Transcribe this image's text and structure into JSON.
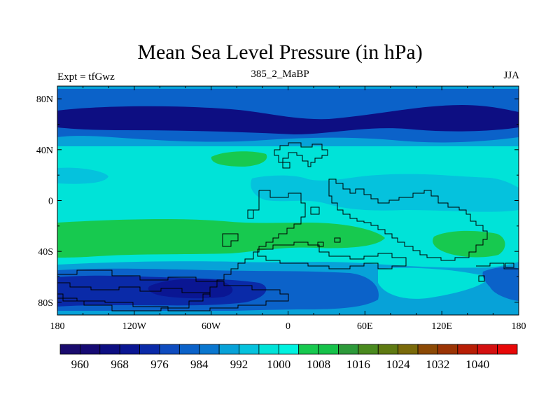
{
  "chart_data": {
    "type": "heatmap",
    "title": "Mean Sea Level Pressure (in hPa)",
    "subtitle": "385_2_MaBP",
    "left_label": "Expt = tfGwz",
    "right_label": "JJA",
    "x_ticks": [
      "180",
      "120W",
      "60W",
      "0",
      "60E",
      "120E",
      "180"
    ],
    "x_tick_values": [
      -180,
      -120,
      -60,
      0,
      60,
      120,
      180
    ],
    "y_ticks": [
      "80N",
      "40N",
      "0",
      "40S",
      "80S"
    ],
    "y_tick_values": [
      80,
      40,
      0,
      -40,
      -80
    ],
    "xlim": [
      -180,
      180
    ],
    "ylim": [
      -90,
      90
    ],
    "colorbar": {
      "levels": [
        956,
        960,
        964,
        968,
        972,
        976,
        980,
        984,
        988,
        992,
        996,
        1000,
        1004,
        1008,
        1012,
        1016,
        1020,
        1024,
        1028,
        1032,
        1036,
        1040
      ],
      "labels": [
        "960",
        "968",
        "976",
        "984",
        "992",
        "1000",
        "1008",
        "1016",
        "1024",
        "1032",
        "1040"
      ],
      "colors": [
        "#1a0b6e",
        "#160a73",
        "#0d0e82",
        "#0a1693",
        "#0a2aa8",
        "#0f4cbf",
        "#0b62c9",
        "#0a77cf",
        "#07a2d8",
        "#05c2dd",
        "#00e3d8",
        "#00f2e0",
        "#17c94f",
        "#16c24a",
        "#2d9a3a",
        "#4a8a1f",
        "#5f7a12",
        "#7a6a0a",
        "#8c4a05",
        "#9b3404",
        "#b81e05",
        "#d41010",
        "#e80808"
      ]
    }
  }
}
